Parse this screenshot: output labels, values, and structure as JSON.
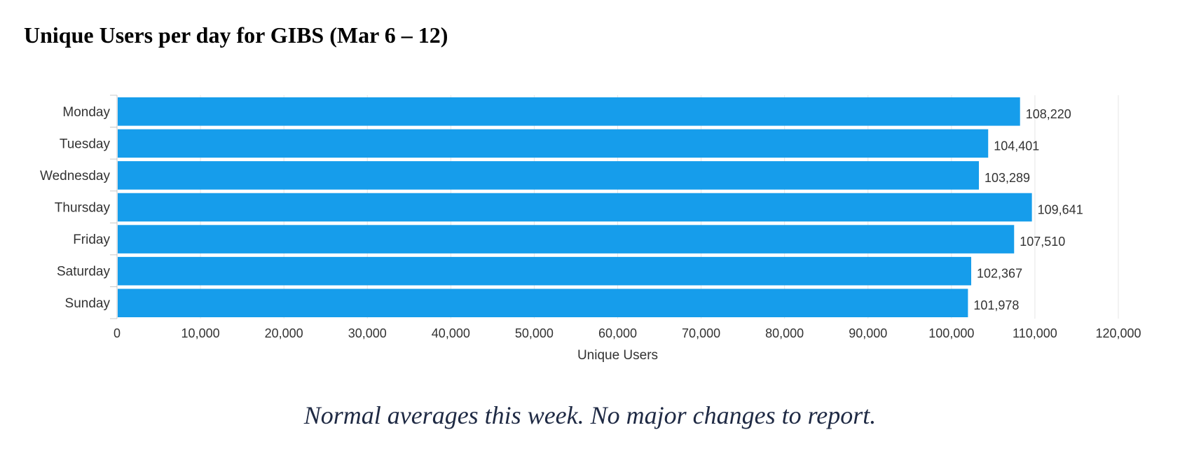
{
  "page": {
    "title": "Unique Users per day for GIBS (Mar 6 – 12)",
    "footnote": "Normal averages this week.  No major changes to report."
  },
  "chart_data": {
    "type": "bar",
    "orientation": "horizontal",
    "categories": [
      "Monday",
      "Tuesday",
      "Wednesday",
      "Thursday",
      "Friday",
      "Saturday",
      "Sunday"
    ],
    "values": [
      108220,
      104401,
      103289,
      109641,
      107510,
      102367,
      101978
    ],
    "value_labels": [
      "108,220",
      "104,401",
      "103,289",
      "109,641",
      "107,510",
      "102,367",
      "101,978"
    ],
    "xlabel": "Unique Users",
    "ylabel": "",
    "xlim": [
      0,
      120000
    ],
    "x_ticks": [
      0,
      10000,
      20000,
      30000,
      40000,
      50000,
      60000,
      70000,
      80000,
      90000,
      100000,
      110000,
      120000
    ],
    "x_tick_labels": [
      "0",
      "10,000",
      "20,000",
      "30,000",
      "40,000",
      "50,000",
      "60,000",
      "70,000",
      "80,000",
      "90,000",
      "100,000",
      "110,000",
      "120,000"
    ],
    "grid": true,
    "legend": "none",
    "colors": {
      "bar": "#169deb",
      "grid": "#e6e6e6",
      "axis": "#c8c8c8",
      "text": "#333333"
    }
  }
}
